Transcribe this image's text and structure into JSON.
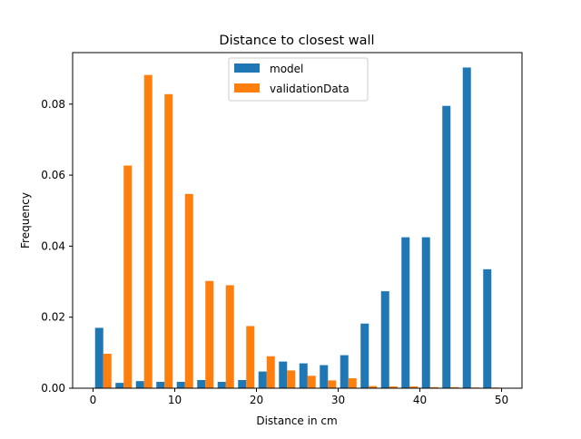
{
  "chart_data": {
    "type": "bar",
    "title": "Distance to closest wall",
    "xlabel": "Distance in cm",
    "ylabel": "Frequency",
    "xlim": [
      -2.5,
      52.5
    ],
    "ylim": [
      0,
      0.0945
    ],
    "xticks": [
      0,
      10,
      20,
      30,
      40,
      50
    ],
    "yticks": [
      0.0,
      0.02,
      0.04,
      0.06,
      0.08
    ],
    "ytick_labels": [
      "0.00",
      "0.02",
      "0.04",
      "0.06",
      "0.08"
    ],
    "bin_edges": [
      0,
      2.5,
      5,
      7.5,
      10,
      12.5,
      15,
      17.5,
      20,
      22.5,
      25,
      27.5,
      30,
      32.5,
      35,
      37.5,
      40,
      42.5,
      45,
      47.5,
      50
    ],
    "legend_position": "upper center",
    "grid": false,
    "series": [
      {
        "name": "model",
        "color": "#1f77b4",
        "values": [
          0.017,
          0.0015,
          0.002,
          0.0018,
          0.0018,
          0.0023,
          0.0018,
          0.0023,
          0.0047,
          0.0075,
          0.007,
          0.0065,
          0.0093,
          0.0182,
          0.0273,
          0.0425,
          0.0425,
          0.0795,
          0.0903,
          0.0335
        ]
      },
      {
        "name": "validationData",
        "color": "#ff7f0e",
        "values": [
          0.0097,
          0.0627,
          0.0882,
          0.0828,
          0.0547,
          0.0302,
          0.029,
          0.0175,
          0.009,
          0.005,
          0.0035,
          0.0022,
          0.0028,
          0.0006,
          0.0005,
          0.0005,
          0.0003,
          0.0003,
          0.0002,
          0.0002
        ]
      }
    ]
  }
}
